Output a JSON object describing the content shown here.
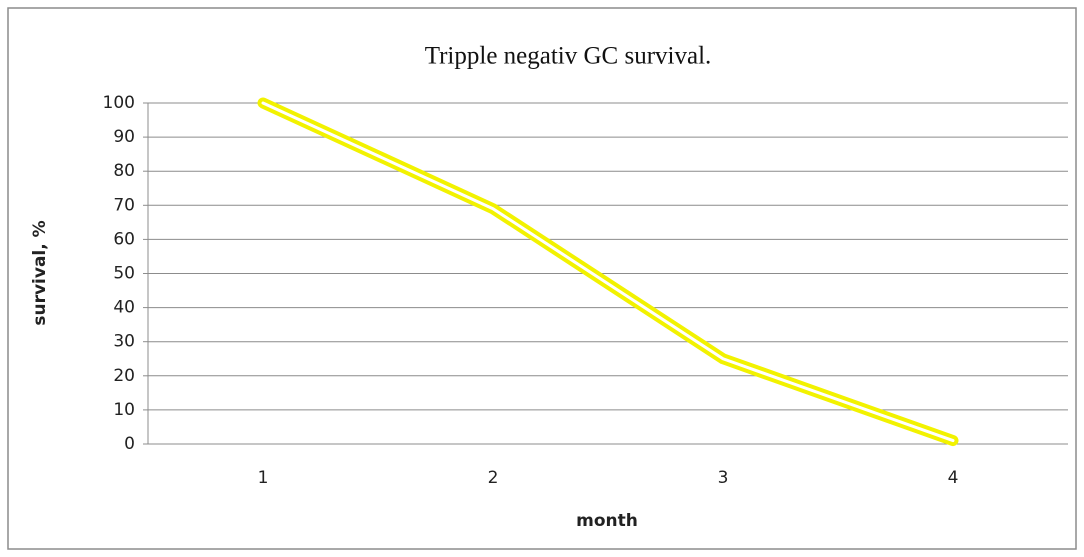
{
  "chart_data": {
    "type": "line",
    "title": "Tripple negativ GC survival.",
    "x_label": "month",
    "y_label": "survival, %",
    "categories": [
      "1",
      "2",
      "3",
      "4"
    ],
    "values": [
      100,
      69,
      25,
      1
    ],
    "color": "#f2f200",
    "ylim": [
      0,
      100
    ],
    "yticks": [
      0,
      10,
      20,
      30,
      40,
      50,
      60,
      70,
      80,
      90,
      100
    ],
    "grid": true
  }
}
